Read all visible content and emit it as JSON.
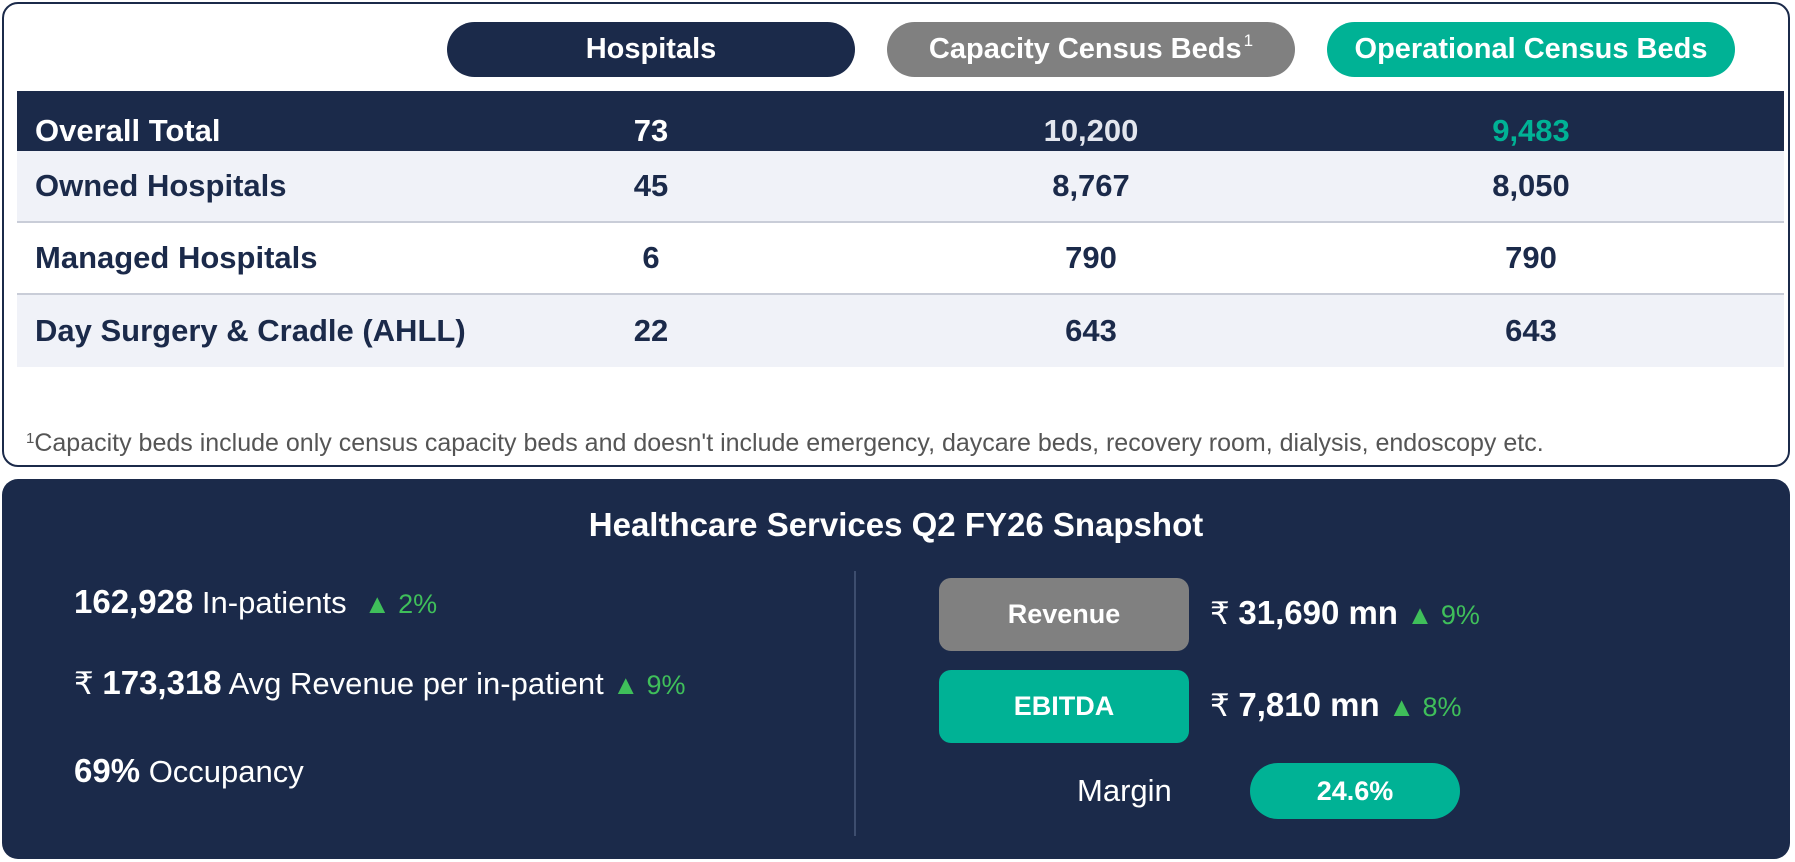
{
  "headers": {
    "hospitals": "Hospitals",
    "capacity": "Capacity Census Beds",
    "capacity_sup": "1",
    "operational": "Operational Census Beds"
  },
  "rows": [
    {
      "label": "Overall Total",
      "hospitals": "73",
      "capacity": "10,200",
      "operational": "9,483"
    },
    {
      "label": "Owned Hospitals",
      "hospitals": "45",
      "capacity": "8,767",
      "operational": "8,050"
    },
    {
      "label": "Managed Hospitals",
      "hospitals": "6",
      "capacity": "790",
      "operational": "790"
    },
    {
      "label": "Day Surgery & Cradle (AHLL)",
      "hospitals": "22",
      "capacity": "643",
      "operational": "643"
    }
  ],
  "footnote": {
    "sup": "1",
    "text": "Capacity beds include only census capacity beds and doesn't include emergency, daycare beds, recovery room, dialysis, endoscopy etc."
  },
  "snapshot": {
    "title": "Healthcare Services Q2 FY26 Snapshot",
    "inpatients": {
      "value": "162,928",
      "label": "In-patients",
      "change": "▲ 2%"
    },
    "avg_revenue": {
      "currency": "₹",
      "value": "173,318",
      "label": "Avg Revenue per in-patient",
      "change": "▲ 9%"
    },
    "occupancy": {
      "value": "69%",
      "label": "Occupancy"
    },
    "revenue": {
      "label": "Revenue",
      "currency": "₹",
      "value": "31,690 mn",
      "change": "▲ 9%"
    },
    "ebitda": {
      "label": "EBITDA",
      "currency": "₹",
      "value": "7,810 mn",
      "change": "▲ 8%"
    },
    "margin": {
      "label": "Margin",
      "value": "24.6%"
    }
  },
  "colors": {
    "navy": "#1b2a4a",
    "teal": "#00b295",
    "gray": "#808080",
    "green": "#3fbf5a"
  }
}
